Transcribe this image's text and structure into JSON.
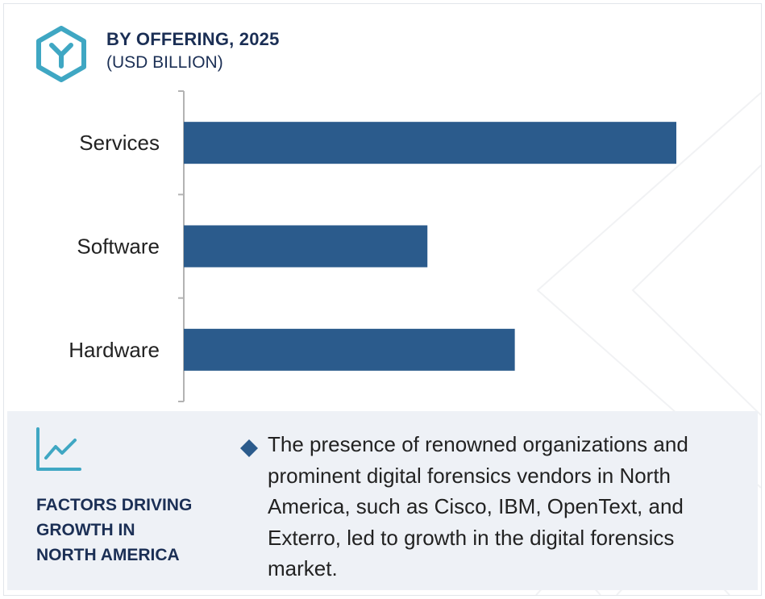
{
  "header": {
    "title": "BY OFFERING, 2025",
    "subtitle": "(USD BILLION)",
    "logo_icon": "hexagon-y-logo-icon"
  },
  "colors": {
    "bar": "#2b5b8c",
    "title": "#1b2f55",
    "axis": "#b3b3b3",
    "logo": "#3fa7c3",
    "panel_bg": "#eef1f6"
  },
  "chart_data": {
    "type": "bar",
    "orientation": "horizontal",
    "title": "BY OFFERING, 2025",
    "subtitle": "(USD BILLION)",
    "categories": [
      "Services",
      "Software",
      "Hardware"
    ],
    "values": [
      9.3,
      4.6,
      6.25
    ],
    "xlim": [
      0,
      10
    ],
    "xaxis_visible": false,
    "grid": false,
    "legend": "none"
  },
  "factors": {
    "icon": "trend-line-chart-icon",
    "title_lines": [
      "FACTORS DRIVING",
      "GROWTH IN",
      "NORTH AMERICA"
    ],
    "bullet_icon": "diamond-bullet-icon",
    "bullet_lines": [
      "The presence of renowned organizations and",
      "prominent digital forensics vendors in North",
      "America, such as Cisco, IBM, OpenText, and",
      "Exterro, led to growth in the digital forensics",
      "market."
    ]
  }
}
